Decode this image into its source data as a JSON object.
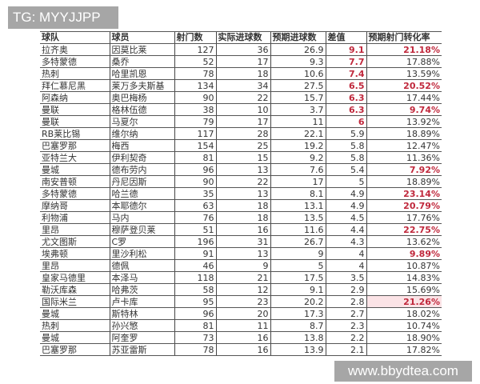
{
  "watermark_top": "TG: MYYJJPP",
  "watermark_bottom": "www.bbydtea.com",
  "highlight_color": "#c0283c",
  "headers": [
    "球队",
    "球员",
    "射门数",
    "实际进球数",
    "预期进球数",
    "差值",
    "预期射门转化率"
  ],
  "rows": [
    [
      "拉齐奥",
      "因莫比莱",
      "127",
      "36",
      "26.9",
      "9.1",
      "21.18%"
    ],
    [
      "多特蒙德",
      "桑乔",
      "52",
      "17",
      "9.3",
      "7.7",
      "17.88%"
    ],
    [
      "热刺",
      "哈里凯恩",
      "78",
      "18",
      "10.6",
      "7.4",
      "13.59%"
    ],
    [
      "拜仁慕尼黑",
      "莱万多夫斯基",
      "134",
      "34",
      "27.5",
      "6.5",
      "20.52%"
    ],
    [
      "阿森纳",
      "奥巴梅杨",
      "90",
      "22",
      "15.7",
      "6.3",
      "17.44%"
    ],
    [
      "曼联",
      "格林伍德",
      "38",
      "10",
      "3.7",
      "6.3",
      "9.74%"
    ],
    [
      "曼联",
      "马夏尔",
      "79",
      "17",
      "11",
      "6",
      "13.92%"
    ],
    [
      "RB莱比锡",
      "维尔纳",
      "117",
      "28",
      "22.1",
      "5.9",
      "18.89%"
    ],
    [
      "巴塞罗那",
      "梅西",
      "154",
      "25",
      "19.2",
      "5.8",
      "12.47%"
    ],
    [
      "亚特兰大",
      "伊利契奇",
      "81",
      "15",
      "9.2",
      "5.8",
      "11.36%"
    ],
    [
      "曼城",
      "德布劳内",
      "96",
      "13",
      "7.6",
      "5.4",
      "7.92%"
    ],
    [
      "南安普顿",
      "丹尼因斯",
      "90",
      "22",
      "17",
      "5",
      "18.89%"
    ],
    [
      "多特蒙德",
      "哈兰德",
      "35",
      "13",
      "8.1",
      "4.9",
      "23.14%"
    ],
    [
      "摩纳哥",
      "本耶德尔",
      "63",
      "18",
      "13.1",
      "4.9",
      "20.79%"
    ],
    [
      "利物浦",
      "马内",
      "76",
      "18",
      "13.5",
      "4.5",
      "17.76%"
    ],
    [
      "里昂",
      "穆萨登贝莱",
      "51",
      "16",
      "11.6",
      "4.4",
      "22.75%"
    ],
    [
      "尤文图斯",
      "C罗",
      "196",
      "31",
      "26.7",
      "4.3",
      "13.62%"
    ],
    [
      "埃弗顿",
      "里沙利松",
      "91",
      "13",
      "9",
      "4",
      "9.89%"
    ],
    [
      "里昂",
      "德佩",
      "46",
      "9",
      "5",
      "4",
      "10.87%"
    ],
    [
      "皇家马德里",
      "本泽马",
      "118",
      "21",
      "17.5",
      "3.5",
      "14.83%"
    ],
    [
      "勒沃库森",
      "哈弗茨",
      "58",
      "12",
      "9.1",
      "2.9",
      "15.69%"
    ],
    [
      "国际米兰",
      "卢卡库",
      "95",
      "23",
      "20.2",
      "2.8",
      "21.26%"
    ],
    [
      "曼城",
      "斯特林",
      "96",
      "20",
      "17.3",
      "2.7",
      "18.02%"
    ],
    [
      "热刺",
      "孙兴慜",
      "81",
      "11",
      "8.7",
      "2.3",
      "10.74%"
    ],
    [
      "曼城",
      "阿奎罗",
      "73",
      "16",
      "13.8",
      "2.2",
      "18.90%"
    ],
    [
      "巴塞罗那",
      "苏亚雷斯",
      "78",
      "16",
      "13.9",
      "2.1",
      "17.82%"
    ]
  ],
  "highlighted_diff_rows": [
    0,
    1,
    2,
    3,
    4,
    5,
    6
  ],
  "highlighted_rate_rows": [
    0,
    3,
    5,
    10,
    12,
    13,
    15,
    17,
    21
  ]
}
